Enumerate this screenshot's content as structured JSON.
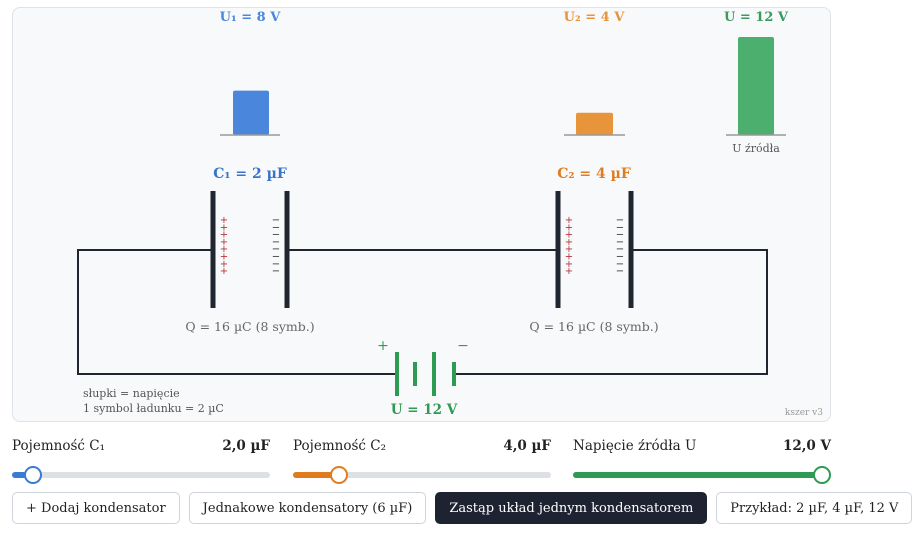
{
  "colors": {
    "c1": "#4a86db",
    "c2": "#e8943a",
    "source": "#4caf6e",
    "wire": "#1f2630",
    "plus": "#b2373b",
    "battery": "#2e9a52"
  },
  "bars": {
    "u1_label": "U₁ = 8 V",
    "u1_value": 8,
    "u2_label": "U₂ = 4 V",
    "u2_value": 4,
    "u_label": "U = 12 V",
    "u_value": 12,
    "source_caption": "U źródła"
  },
  "capacitors": [
    {
      "label": "C₁ = 2 µF",
      "charge_label": "Q = 16 µC (8 symb.)",
      "symbols": 8
    },
    {
      "label": "C₂ = 4 µF",
      "charge_label": "Q = 16 µC (8 symb.)",
      "symbols": 8
    }
  ],
  "battery": {
    "plus": "+",
    "minus": "−",
    "label": "U = 12 V"
  },
  "legend": {
    "line1": "słupki = napięcie",
    "line2": "1 symbol ładunku = 2 µC"
  },
  "version": "kszer v3",
  "sliders": [
    {
      "label": "Pojemność C₁",
      "value_text": "2,0 µF",
      "fraction": 0.08,
      "color": "#3a7bd5"
    },
    {
      "label": "Pojemność C₂",
      "value_text": "4,0 µF",
      "fraction": 0.18,
      "color": "#e07c1f"
    },
    {
      "label": "Napięcie źródła U",
      "value_text": "12,0 V",
      "fraction": 1.0,
      "color": "#2e9a52"
    }
  ],
  "buttons": {
    "add": "+ Dodaj kondensator",
    "equal": "Jednakowe kondensatory (6 µF)",
    "replace": "Zastąp układ jednym kondensatorem",
    "example": "Przykład: 2 µF, 4 µF, 12 V"
  }
}
